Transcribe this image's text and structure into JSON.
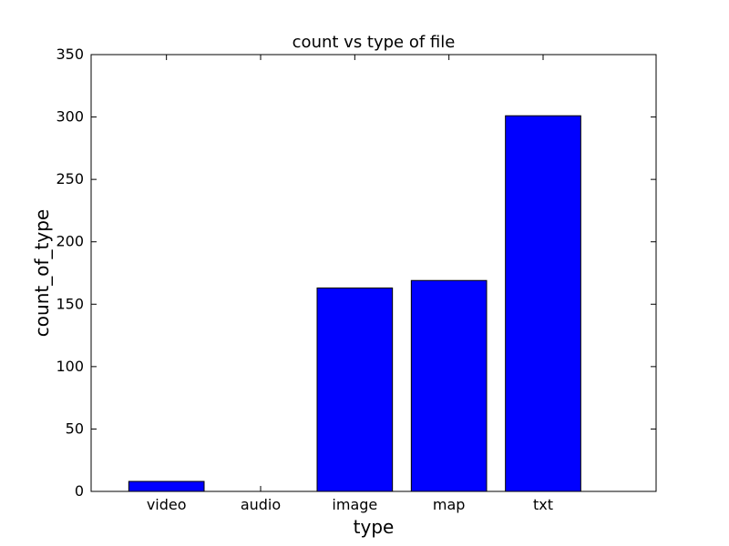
{
  "chart_data": {
    "type": "bar",
    "title": "count vs type of file",
    "xlabel": "type",
    "ylabel": "count_of_type",
    "categories": [
      "video",
      "audio",
      "image",
      "map",
      "txt"
    ],
    "values": [
      8,
      0,
      163,
      169,
      301
    ],
    "ylim": [
      0,
      350
    ],
    "yticks": [
      0,
      50,
      100,
      150,
      200,
      250,
      300,
      350
    ],
    "bar_color": "#0000ff",
    "grid": false,
    "legend": "none"
  }
}
